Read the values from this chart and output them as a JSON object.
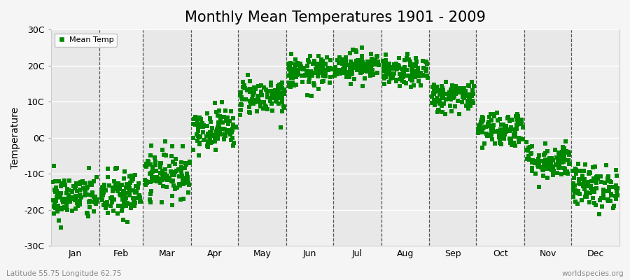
{
  "title": "Monthly Mean Temperatures 1901 - 2009",
  "ylabel": "Temperature",
  "footer_left": "Latitude 55.75 Longitude 62.75",
  "footer_right": "worldspecies.org",
  "legend_label": "Mean Temp",
  "ylim": [
    -30,
    30
  ],
  "yticks": [
    -30,
    -20,
    -10,
    0,
    10,
    20,
    30
  ],
  "ytick_labels": [
    "-30C",
    "-20C",
    "-10C",
    "0C",
    "10C",
    "20C",
    "30C"
  ],
  "months": [
    "Jan",
    "Feb",
    "Mar",
    "Apr",
    "May",
    "Jun",
    "Jul",
    "Aug",
    "Sep",
    "Oct",
    "Nov",
    "Dec"
  ],
  "month_days": [
    31,
    28,
    31,
    30,
    31,
    30,
    31,
    31,
    30,
    31,
    30,
    31
  ],
  "marker_color": "#008800",
  "marker_size": 4,
  "bg_color": "#f5f5f5",
  "band_colors": [
    "#e8e8e8",
    "#f0f0f0"
  ],
  "n_years": 109,
  "mean_temps": [
    -16.5,
    -16.0,
    -10.0,
    2.5,
    11.5,
    18.0,
    20.0,
    18.0,
    11.5,
    2.5,
    -6.5,
    -13.5
  ],
  "std_temps": [
    3.2,
    3.5,
    3.2,
    2.8,
    2.5,
    2.2,
    2.0,
    2.0,
    2.2,
    2.5,
    2.5,
    3.0
  ],
  "title_fontsize": 15,
  "label_fontsize": 9,
  "ylabel_fontsize": 10
}
